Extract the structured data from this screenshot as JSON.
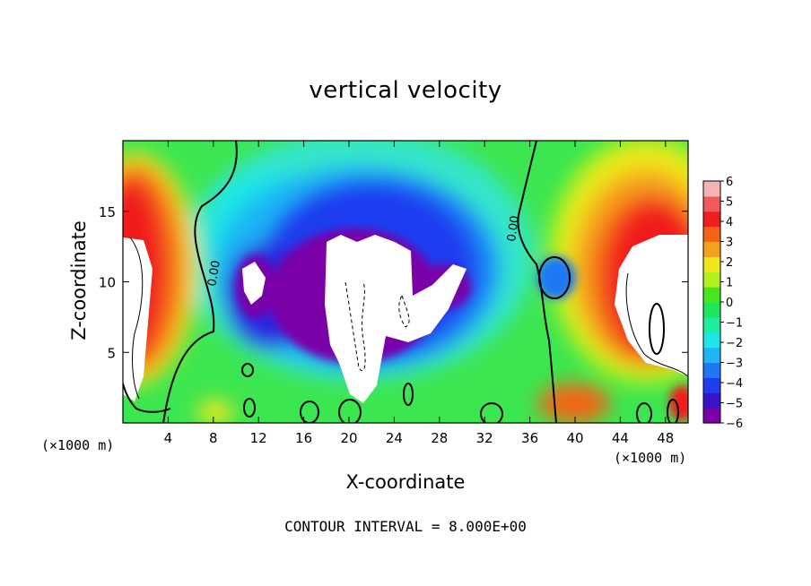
{
  "chart_data": {
    "type": "heatmap",
    "title": "vertical velocity",
    "xlabel": "X-coordinate",
    "ylabel": "Z-coordinate",
    "x_unit": "(×1000 m)",
    "y_unit": "(×1000 m)",
    "footnote": "CONTOUR INTERVAL = 8.000E+00",
    "xlim": [
      0,
      50
    ],
    "ylim": [
      0,
      20
    ],
    "x_ticks": [
      4,
      8,
      12,
      16,
      20,
      24,
      28,
      32,
      36,
      40,
      44,
      48
    ],
    "y_ticks": [
      5,
      10,
      15
    ],
    "colorbar": {
      "min": -6,
      "max": 6,
      "ticks": [
        6,
        5,
        4,
        3,
        2,
        1,
        0,
        -1,
        -2,
        -3,
        -4,
        -5,
        -6
      ],
      "tick_labels": [
        "6",
        "5",
        "4",
        "3",
        "2",
        "1",
        "0",
        "−1",
        "−2",
        "−3",
        "−4",
        "−5",
        "−6"
      ],
      "colors": [
        "#7a00a8",
        "#3a14c8",
        "#1e3cf0",
        "#1e78f5",
        "#1eb4f5",
        "#1ee6e6",
        "#1eeca0",
        "#1ee65a",
        "#46e61e",
        "#b4f01e",
        "#f0e61e",
        "#f5a01e",
        "#f56414",
        "#f01e1e",
        "#f05a5a",
        "#f5b4b4"
      ]
    },
    "contour_labels": [
      "0.00",
      "0.00"
    ],
    "colors": {
      "above_max": "#ffffff",
      "below_min": "#ffffff",
      "contour": "#000000"
    }
  }
}
